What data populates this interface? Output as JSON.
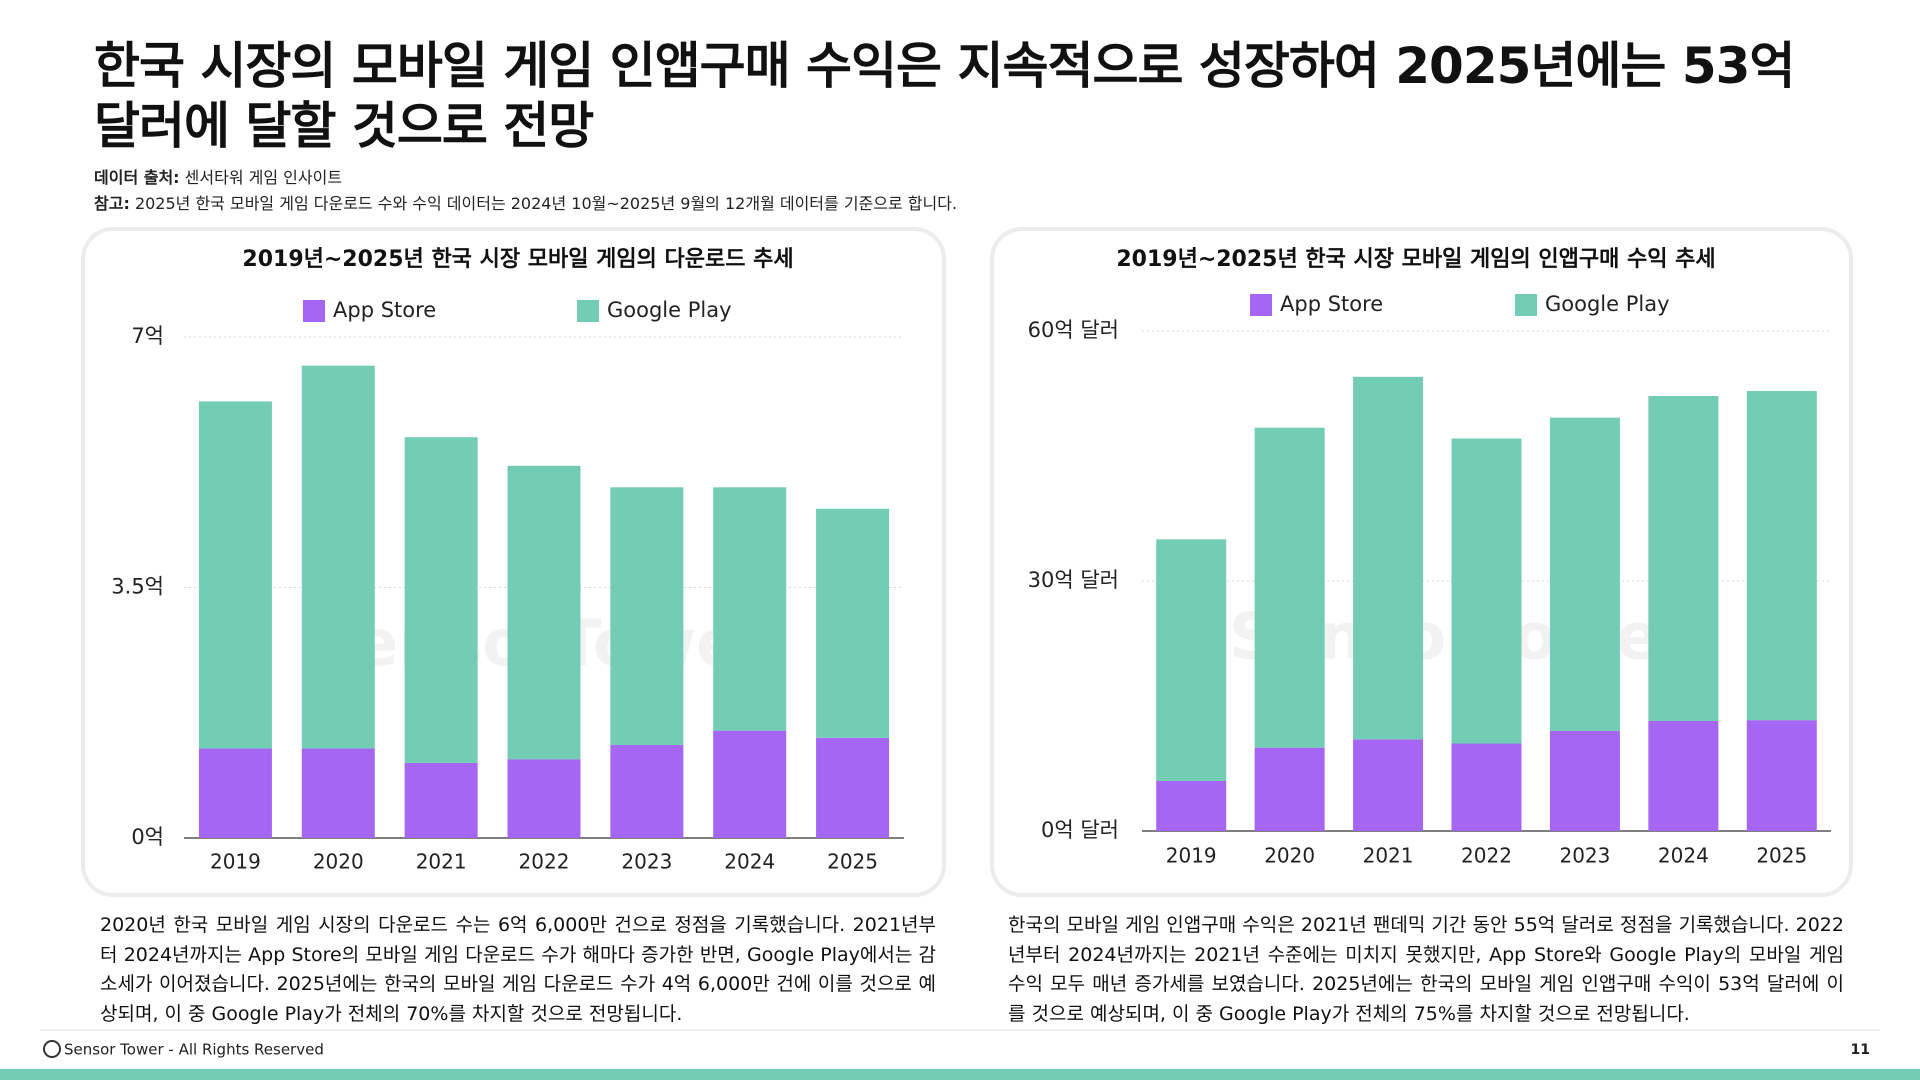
{
  "title": "한국 시장의 모바일 게임 인앱구매 수익은 지속적으로 성장하여 2025년에는 53억 달러에 달할 것으로 전망",
  "source_label": "데이터 출처:",
  "source": "센서타워 게임 인사이트",
  "note_label": "참고:",
  "note": "2025년 한국 모바일 게임 다운로드 수와 수익 데이터는 2024년 10월~2025년 9월의 12개월 데이터를 기준으로 합니다.",
  "watermark": "SensorTower",
  "chart_data": [
    {
      "type": "bar",
      "stacked": true,
      "title": "2019년~2025년 한국 시장 모바일 게임의 다운로드 추세",
      "categories": [
        "2019",
        "2020",
        "2021",
        "2022",
        "2023",
        "2024",
        "2025"
      ],
      "series": [
        {
          "name": "App Store",
          "color": "#a566f4",
          "values": [
            1.25,
            1.25,
            1.05,
            1.1,
            1.3,
            1.5,
            1.4
          ]
        },
        {
          "name": "Google Play",
          "color": "#72cdb4",
          "values": [
            4.85,
            5.35,
            4.55,
            4.1,
            3.6,
            3.4,
            3.2
          ]
        }
      ],
      "ylim": [
        0,
        7
      ],
      "yticks": [
        {
          "value": 0,
          "label": "0억"
        },
        {
          "value": 3.5,
          "label": "3.5억"
        },
        {
          "value": 7,
          "label": "7억"
        }
      ],
      "grid": true
    },
    {
      "type": "bar",
      "stacked": true,
      "title": "2019년~2025년 한국 시장 모바일 게임의 인앱구매 수익 추세",
      "categories": [
        "2019",
        "2020",
        "2021",
        "2022",
        "2023",
        "2024",
        "2025"
      ],
      "series": [
        {
          "name": "App Store",
          "color": "#a566f4",
          "values": [
            6,
            10,
            11,
            10.5,
            12,
            13.2,
            13.3
          ]
        },
        {
          "name": "Google Play",
          "color": "#72cdb4",
          "values": [
            29,
            38.4,
            43.5,
            36.6,
            37.6,
            39,
            39.5
          ]
        }
      ],
      "ylim": [
        0,
        60
      ],
      "yticks": [
        {
          "value": 0,
          "label": "0억 달러"
        },
        {
          "value": 30,
          "label": "30억 달러"
        },
        {
          "value": 60,
          "label": "60억 달러"
        }
      ],
      "grid": true
    }
  ],
  "descriptions": [
    "2020년 한국 모바일 게임 시장의 다운로드 수는 6억 6,000만 건으로 정점을 기록했습니다. 2021년부터 2024년까지는 App Store의 모바일 게임 다운로드 수가 해마다 증가한 반면, Google Play에서는 감소세가 이어졌습니다. 2025년에는 한국의 모바일 게임 다운로드 수가 4억 6,000만 건에 이를 것으로 예상되며, 이 중 Google Play가 전체의 70%를 차지할 것으로 전망됩니다.",
    "한국의 모바일 게임 인앱구매 수익은 2021년 팬데믹 기간 동안 55억 달러로 정점을 기록했습니다. 2022년부터 2024년까지는 2021년 수준에는 미치지 못했지만, App Store와 Google Play의 모바일 게임 수익 모두 매년 증가세를 보였습니다. 2025년에는 한국의 모바일 게임 인앱구매 수익이 53억 달러에 이를 것으로 예상되며, 이 중 Google Play가 전체의 75%를 차지할 것으로 전망됩니다."
  ],
  "footer": "Sensor Tower - All Rights Reserved",
  "page_number": "11"
}
